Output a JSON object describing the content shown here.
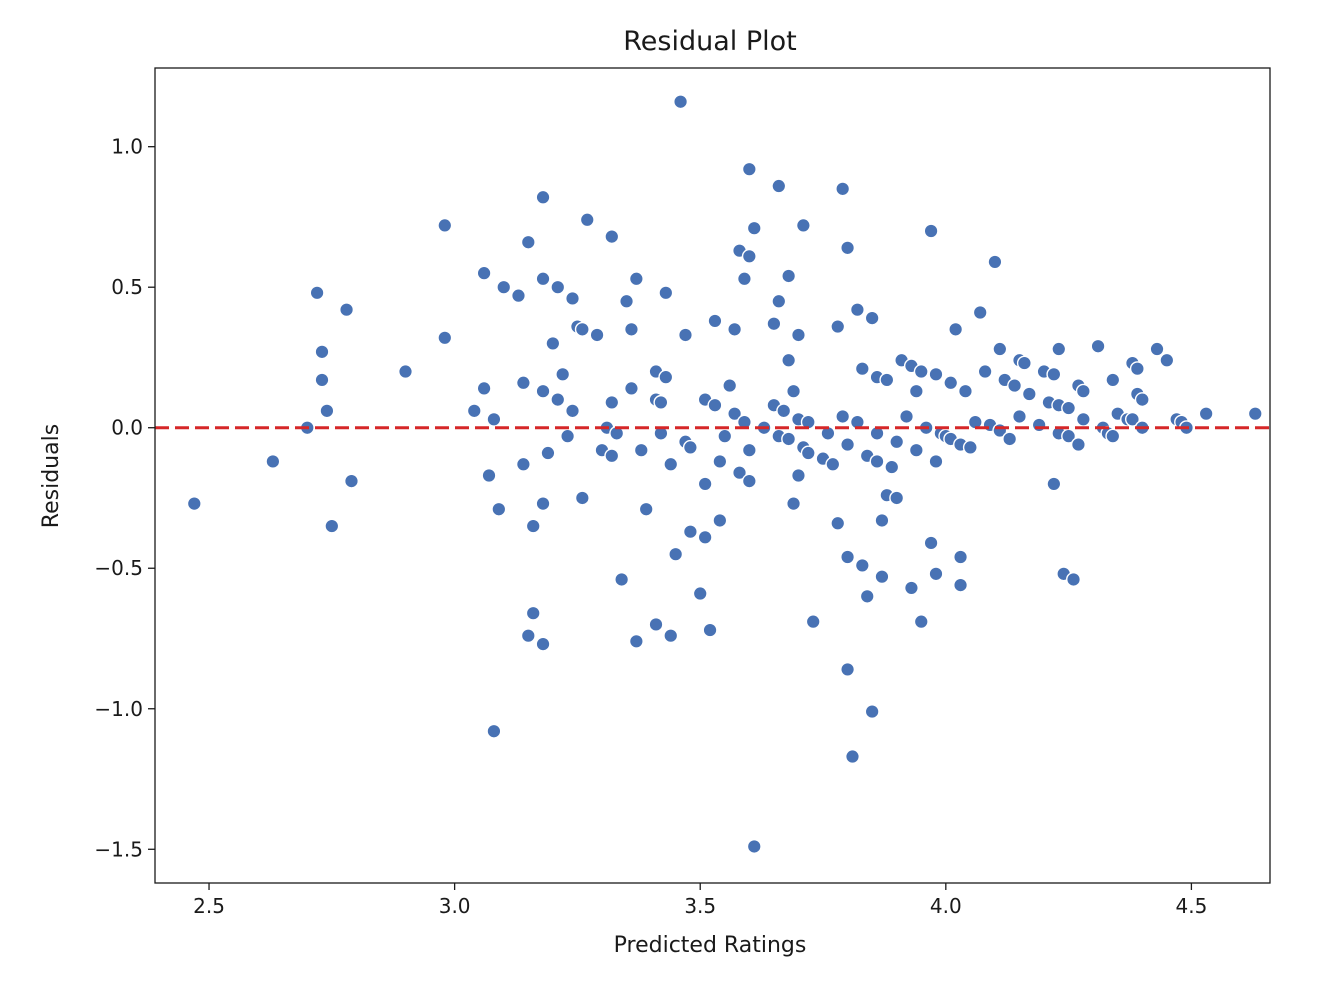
{
  "chart_data": {
    "type": "scatter",
    "title": "Residual Plot",
    "xlabel": "Predicted Ratings",
    "ylabel": "Residuals",
    "xlim": [
      2.39,
      4.66
    ],
    "ylim": [
      -1.62,
      1.28
    ],
    "xticks": [
      2.5,
      3.0,
      3.5,
      4.0,
      4.5
    ],
    "xtick_labels": [
      "2.5",
      "3.0",
      "3.5",
      "4.0",
      "4.5"
    ],
    "yticks": [
      1.0,
      0.5,
      0.0,
      -0.5,
      -1.0,
      -1.5
    ],
    "ytick_labels": [
      "1.0",
      "0.5",
      "0.0",
      "−0.5",
      "−1.0",
      "−1.5"
    ],
    "grid": false,
    "point_color": "#4872b4",
    "reference_line": {
      "y": 0.0,
      "style": "dashed",
      "color": "#d62728"
    },
    "points": [
      [
        2.47,
        -0.27
      ],
      [
        2.63,
        -0.12
      ],
      [
        2.7,
        0.0
      ],
      [
        2.72,
        0.48
      ],
      [
        2.73,
        0.27
      ],
      [
        2.73,
        0.17
      ],
      [
        2.74,
        0.06
      ],
      [
        2.75,
        -0.35
      ],
      [
        2.78,
        0.42
      ],
      [
        2.79,
        -0.19
      ],
      [
        2.9,
        0.2
      ],
      [
        2.98,
        0.72
      ],
      [
        2.98,
        0.32
      ],
      [
        3.04,
        0.06
      ],
      [
        3.06,
        0.55
      ],
      [
        3.06,
        0.14
      ],
      [
        3.07,
        -0.17
      ],
      [
        3.08,
        0.03
      ],
      [
        3.08,
        -1.08
      ],
      [
        3.09,
        -0.29
      ],
      [
        3.1,
        0.5
      ],
      [
        3.13,
        0.47
      ],
      [
        3.14,
        0.16
      ],
      [
        3.14,
        -0.13
      ],
      [
        3.15,
        0.66
      ],
      [
        3.15,
        -0.74
      ],
      [
        3.16,
        -0.35
      ],
      [
        3.16,
        -0.66
      ],
      [
        3.18,
        0.82
      ],
      [
        3.18,
        0.53
      ],
      [
        3.18,
        0.13
      ],
      [
        3.18,
        -0.27
      ],
      [
        3.18,
        -0.77
      ],
      [
        3.19,
        -0.09
      ],
      [
        3.2,
        0.3
      ],
      [
        3.21,
        0.5
      ],
      [
        3.21,
        0.1
      ],
      [
        3.22,
        0.19
      ],
      [
        3.23,
        -0.03
      ],
      [
        3.24,
        0.06
      ],
      [
        3.24,
        0.46
      ],
      [
        3.25,
        0.36
      ],
      [
        3.26,
        0.35
      ],
      [
        3.26,
        -0.25
      ],
      [
        3.27,
        0.74
      ],
      [
        3.29,
        0.33
      ],
      [
        3.3,
        -0.08
      ],
      [
        3.31,
        0.0
      ],
      [
        3.32,
        0.09
      ],
      [
        3.32,
        0.68
      ],
      [
        3.32,
        -0.1
      ],
      [
        3.33,
        -0.02
      ],
      [
        3.34,
        -0.54
      ],
      [
        3.35,
        0.45
      ],
      [
        3.36,
        0.35
      ],
      [
        3.36,
        0.14
      ],
      [
        3.37,
        0.53
      ],
      [
        3.37,
        -0.76
      ],
      [
        3.38,
        -0.08
      ],
      [
        3.39,
        -0.29
      ],
      [
        3.41,
        0.2
      ],
      [
        3.41,
        0.1
      ],
      [
        3.41,
        -0.7
      ],
      [
        3.42,
        0.09
      ],
      [
        3.42,
        -0.02
      ],
      [
        3.43,
        0.48
      ],
      [
        3.43,
        0.18
      ],
      [
        3.44,
        -0.13
      ],
      [
        3.44,
        -0.74
      ],
      [
        3.45,
        -0.45
      ],
      [
        3.46,
        1.16
      ],
      [
        3.47,
        -0.05
      ],
      [
        3.47,
        0.33
      ],
      [
        3.48,
        -0.07
      ],
      [
        3.48,
        -0.37
      ],
      [
        3.5,
        -0.59
      ],
      [
        3.51,
        -0.2
      ],
      [
        3.51,
        0.1
      ],
      [
        3.51,
        -0.39
      ],
      [
        3.52,
        -0.72
      ],
      [
        3.53,
        0.38
      ],
      [
        3.53,
        0.08
      ],
      [
        3.54,
        -0.12
      ],
      [
        3.54,
        -0.33
      ],
      [
        3.55,
        -0.03
      ],
      [
        3.56,
        0.15
      ],
      [
        3.57,
        0.35
      ],
      [
        3.57,
        0.05
      ],
      [
        3.58,
        0.63
      ],
      [
        3.58,
        -0.16
      ],
      [
        3.59,
        0.53
      ],
      [
        3.59,
        0.02
      ],
      [
        3.6,
        0.92
      ],
      [
        3.6,
        0.61
      ],
      [
        3.6,
        -0.08
      ],
      [
        3.6,
        -0.19
      ],
      [
        3.61,
        0.71
      ],
      [
        3.61,
        -1.49
      ],
      [
        3.63,
        0.0
      ],
      [
        3.65,
        0.37
      ],
      [
        3.65,
        0.08
      ],
      [
        3.66,
        0.86
      ],
      [
        3.66,
        0.45
      ],
      [
        3.66,
        -0.03
      ],
      [
        3.67,
        0.06
      ],
      [
        3.68,
        0.24
      ],
      [
        3.68,
        0.54
      ],
      [
        3.68,
        -0.04
      ],
      [
        3.69,
        0.13
      ],
      [
        3.69,
        -0.27
      ],
      [
        3.7,
        0.33
      ],
      [
        3.7,
        0.03
      ],
      [
        3.7,
        -0.17
      ],
      [
        3.71,
        0.72
      ],
      [
        3.71,
        -0.07
      ],
      [
        3.72,
        -0.09
      ],
      [
        3.72,
        0.02
      ],
      [
        3.73,
        -0.69
      ],
      [
        3.75,
        -0.11
      ],
      [
        3.76,
        -0.02
      ],
      [
        3.77,
        -0.13
      ],
      [
        3.78,
        0.36
      ],
      [
        3.78,
        -0.34
      ],
      [
        3.79,
        0.85
      ],
      [
        3.79,
        0.04
      ],
      [
        3.8,
        0.64
      ],
      [
        3.8,
        -0.06
      ],
      [
        3.8,
        -0.46
      ],
      [
        3.8,
        -0.86
      ],
      [
        3.81,
        -1.17
      ],
      [
        3.82,
        0.42
      ],
      [
        3.82,
        0.02
      ],
      [
        3.83,
        0.21
      ],
      [
        3.83,
        -0.49
      ],
      [
        3.84,
        -0.6
      ],
      [
        3.84,
        -0.1
      ],
      [
        3.85,
        0.39
      ],
      [
        3.85,
        -1.01
      ],
      [
        3.86,
        0.18
      ],
      [
        3.86,
        -0.02
      ],
      [
        3.86,
        -0.12
      ],
      [
        3.87,
        -0.53
      ],
      [
        3.87,
        -0.33
      ],
      [
        3.88,
        0.17
      ],
      [
        3.88,
        -0.24
      ],
      [
        3.89,
        -0.14
      ],
      [
        3.9,
        -0.05
      ],
      [
        3.9,
        -0.25
      ],
      [
        3.91,
        0.24
      ],
      [
        3.92,
        0.04
      ],
      [
        3.93,
        0.22
      ],
      [
        3.93,
        -0.57
      ],
      [
        3.94,
        0.13
      ],
      [
        3.94,
        -0.08
      ],
      [
        3.95,
        0.2
      ],
      [
        3.95,
        -0.69
      ],
      [
        3.96,
        0.0
      ],
      [
        3.97,
        0.7
      ],
      [
        3.97,
        -0.41
      ],
      [
        3.98,
        0.19
      ],
      [
        3.98,
        -0.12
      ],
      [
        3.98,
        -0.52
      ],
      [
        3.99,
        -0.02
      ],
      [
        4.0,
        -0.03
      ],
      [
        4.01,
        0.16
      ],
      [
        4.01,
        -0.04
      ],
      [
        4.02,
        0.35
      ],
      [
        4.03,
        -0.06
      ],
      [
        4.03,
        -0.46
      ],
      [
        4.03,
        -0.56
      ],
      [
        4.04,
        0.13
      ],
      [
        4.05,
        -0.07
      ],
      [
        4.06,
        0.02
      ],
      [
        4.07,
        0.41
      ],
      [
        4.08,
        0.2
      ],
      [
        4.09,
        0.01
      ],
      [
        4.1,
        0.59
      ],
      [
        4.11,
        -0.01
      ],
      [
        4.11,
        0.28
      ],
      [
        4.12,
        0.17
      ],
      [
        4.13,
        -0.04
      ],
      [
        4.14,
        0.15
      ],
      [
        4.15,
        0.04
      ],
      [
        4.15,
        0.24
      ],
      [
        4.16,
        0.23
      ],
      [
        4.17,
        0.12
      ],
      [
        4.19,
        0.01
      ],
      [
        4.2,
        0.2
      ],
      [
        4.21,
        0.09
      ],
      [
        4.22,
        -0.2
      ],
      [
        4.22,
        0.19
      ],
      [
        4.23,
        0.28
      ],
      [
        4.23,
        0.08
      ],
      [
        4.23,
        -0.02
      ],
      [
        4.24,
        -0.52
      ],
      [
        4.25,
        0.07
      ],
      [
        4.25,
        -0.03
      ],
      [
        4.26,
        -0.54
      ],
      [
        4.27,
        0.15
      ],
      [
        4.27,
        -0.06
      ],
      [
        4.28,
        0.13
      ],
      [
        4.28,
        0.03
      ],
      [
        4.31,
        0.29
      ],
      [
        4.32,
        0.0
      ],
      [
        4.33,
        -0.02
      ],
      [
        4.34,
        -0.03
      ],
      [
        4.34,
        0.17
      ],
      [
        4.35,
        0.05
      ],
      [
        4.37,
        0.03
      ],
      [
        4.38,
        0.23
      ],
      [
        4.38,
        0.03
      ],
      [
        4.39,
        0.12
      ],
      [
        4.39,
        0.21
      ],
      [
        4.4,
        0.1
      ],
      [
        4.4,
        0.0
      ],
      [
        4.43,
        0.28
      ],
      [
        4.45,
        0.24
      ],
      [
        4.47,
        0.03
      ],
      [
        4.48,
        0.02
      ],
      [
        4.49,
        0.0
      ],
      [
        4.53,
        0.05
      ],
      [
        4.63,
        0.05
      ]
    ]
  }
}
